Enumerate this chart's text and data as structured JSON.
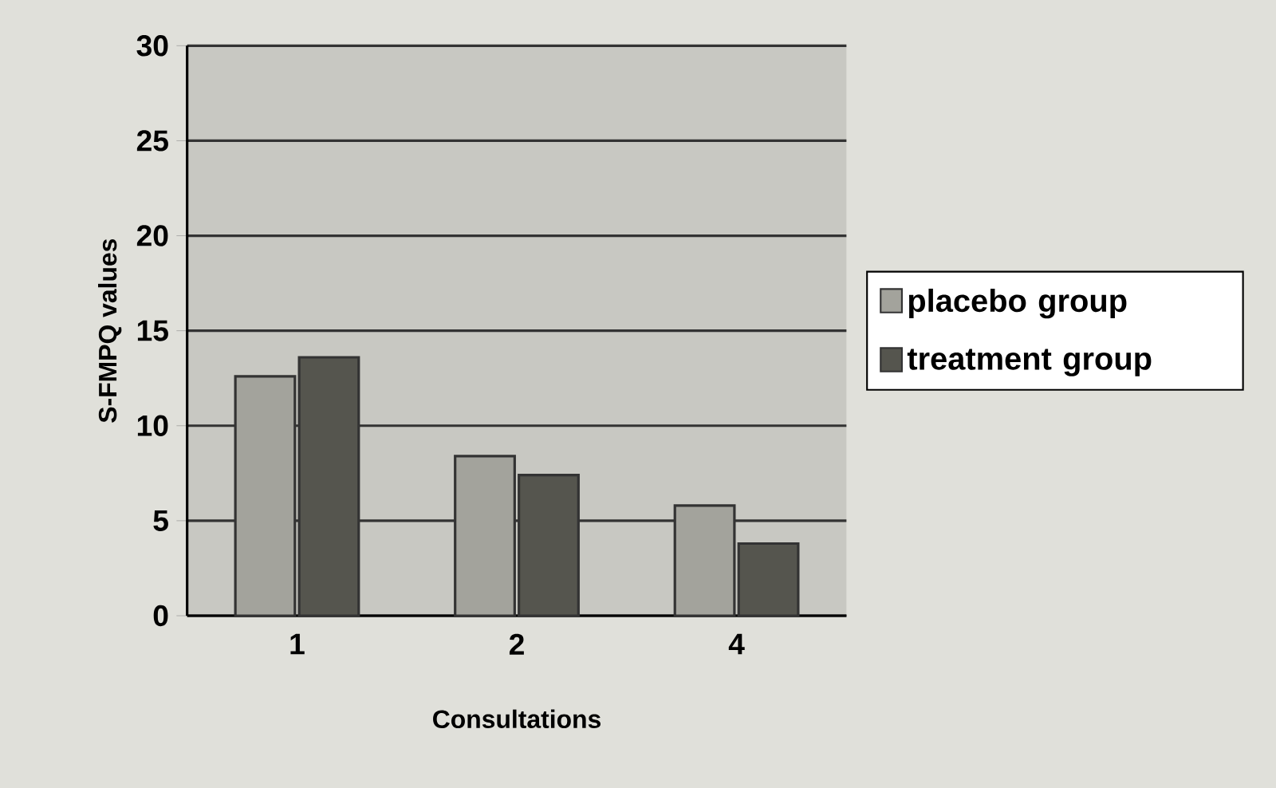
{
  "chart_data": {
    "type": "bar",
    "xlabel": "Consultations",
    "ylabel": "S-FMPQ values",
    "categories": [
      "1",
      "2",
      "4"
    ],
    "series": [
      {
        "name": "placebo group",
        "color": "#a3a39c",
        "values": [
          12.6,
          8.4,
          5.8
        ]
      },
      {
        "name": "treatment group",
        "color": "#55554e",
        "values": [
          13.6,
          7.4,
          3.8
        ]
      }
    ],
    "ylim": [
      0,
      30
    ],
    "yticks": [
      0,
      5,
      10,
      15,
      20,
      25,
      30
    ],
    "grid": "y",
    "legend": "right"
  }
}
